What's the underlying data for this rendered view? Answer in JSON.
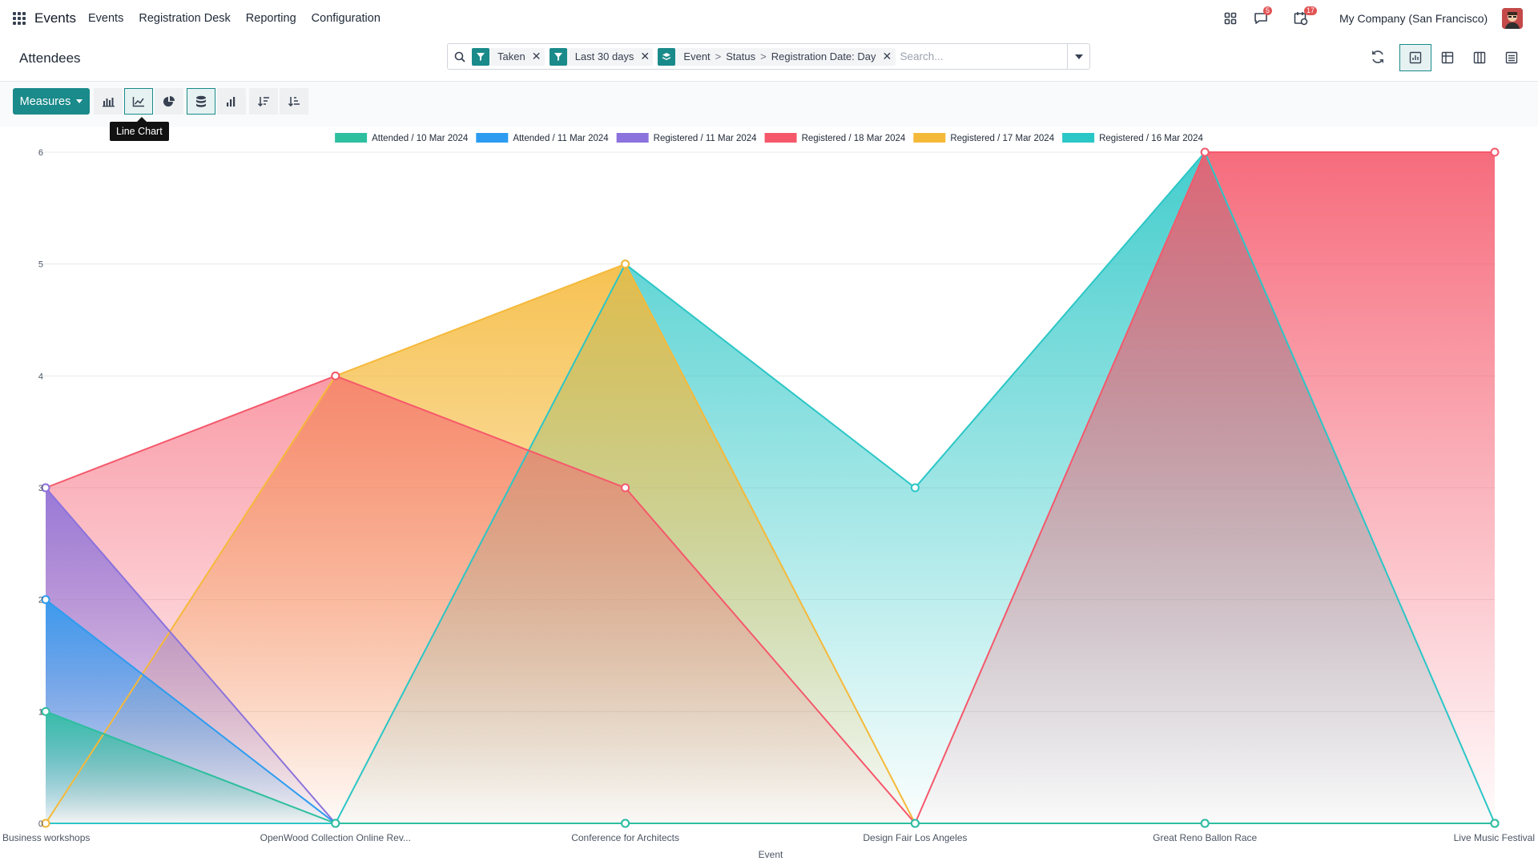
{
  "app": {
    "name": "Events",
    "menu": [
      "Events",
      "Registration Desk",
      "Reporting",
      "Configuration"
    ],
    "company": "My Company (San Francisco)",
    "badges": {
      "messages": "5",
      "activities": "17"
    }
  },
  "control": {
    "breadcrumb": "Attendees",
    "facets": [
      {
        "icon": "filter-icon",
        "label": "Taken"
      },
      {
        "icon": "filter-icon",
        "label": "Last 30 days"
      },
      {
        "icon": "group-by-icon",
        "parts": [
          "Event",
          "Status",
          "Registration Date: Day"
        ],
        "separator": ">"
      }
    ],
    "search_placeholder": "Search..."
  },
  "toolbar": {
    "measures_label": "Measures",
    "tooltip": "Line Chart"
  },
  "chart_data": {
    "type": "area",
    "categories": [
      "Business workshops",
      "OpenWood Collection Online Rev...",
      "Conference for Architects",
      "Design Fair Los Angeles",
      "Great Reno Ballon Race",
      "Live Music Festival"
    ],
    "xlabel": "Event",
    "ylim": [
      0,
      6
    ],
    "yticks": [
      0,
      1,
      2,
      3,
      4,
      5,
      6
    ],
    "ytick_labels": [
      "0",
      "1",
      "2",
      "3",
      "4",
      "5",
      "6"
    ],
    "grid": true,
    "legend_position": "top",
    "series": [
      {
        "name": "Attended / 10 Mar 2024",
        "color": "#2ebf9f",
        "values": [
          1,
          0,
          0,
          0,
          0,
          0
        ]
      },
      {
        "name": "Attended / 11 Mar 2024",
        "color": "#2d9cf0",
        "values": [
          2,
          0,
          0,
          0,
          0,
          0
        ]
      },
      {
        "name": "Registered / 11 Mar 2024",
        "color": "#8b72dc",
        "values": [
          3,
          0,
          0,
          0,
          0,
          0
        ]
      },
      {
        "name": "Registered / 18 Mar 2024",
        "color": "#f5586b",
        "values": [
          3,
          4,
          3,
          0,
          6,
          6
        ]
      },
      {
        "name": "Registered / 17 Mar 2024",
        "color": "#f5b93a",
        "values": [
          0,
          4,
          5,
          0,
          0,
          0
        ]
      },
      {
        "name": "Registered / 16 Mar 2024",
        "color": "#2bc6c6",
        "values": [
          0,
          0,
          5,
          3,
          6,
          0
        ]
      }
    ]
  }
}
